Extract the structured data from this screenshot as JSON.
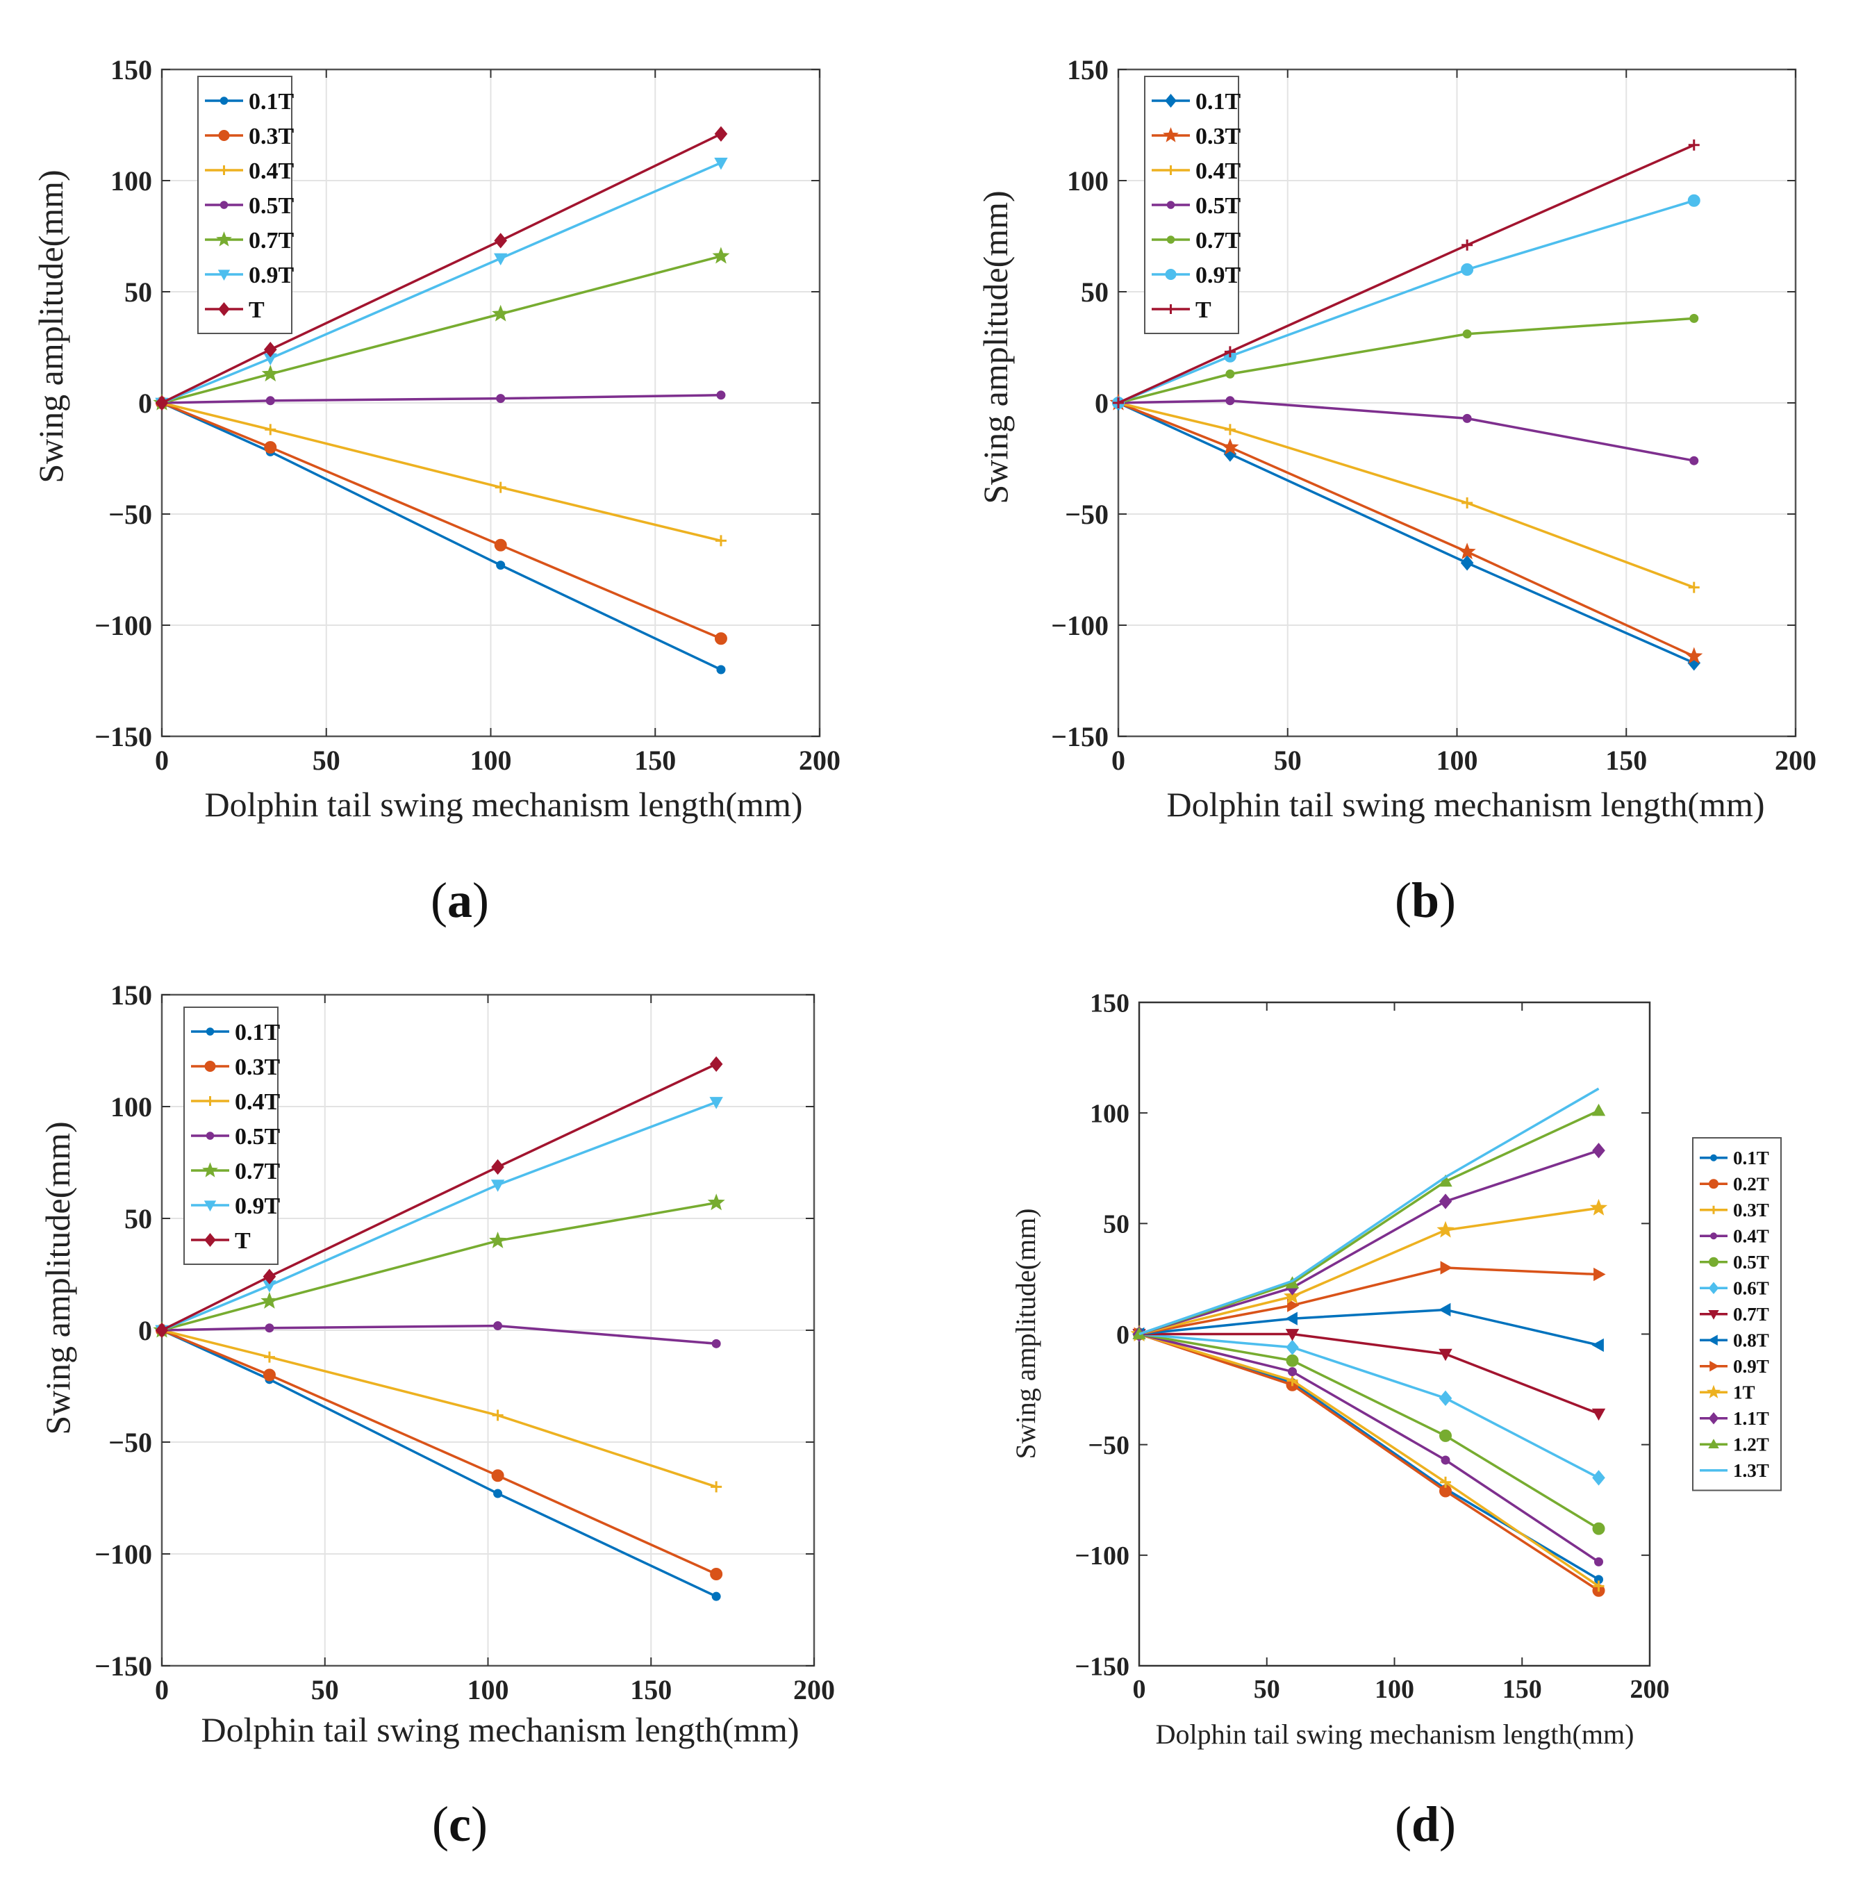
{
  "figure": {
    "panels": [
      {
        "prefix": "(",
        "letter": "a",
        "suffix": ")"
      },
      {
        "prefix": "(",
        "letter": "b",
        "suffix": ")"
      },
      {
        "prefix": "(",
        "letter": "c",
        "suffix": ")"
      },
      {
        "prefix": "(",
        "letter": "d",
        "suffix": ")"
      }
    ]
  },
  "chart_data": [
    {
      "type": "line",
      "panel": "a",
      "xlabel": "Dolphin tail swing mechanism length(mm)",
      "ylabel": "Swing amplitude(mm)",
      "xlim": [
        0,
        200
      ],
      "ylim": [
        -150,
        150
      ],
      "xticks": [
        0,
        50,
        100,
        150,
        200
      ],
      "yticks": [
        150,
        100,
        50,
        0,
        -50,
        -100,
        -150
      ],
      "ytick_labels": [
        "150",
        "100",
        "50",
        "0",
        "−50",
        "−100",
        "−150"
      ],
      "grid": true,
      "legend_position": "top-left",
      "x": [
        0,
        33,
        103,
        170
      ],
      "series": [
        {
          "name": "0.1T",
          "color": "#0072BD",
          "marker": "dot",
          "values": [
            0,
            -22,
            -73,
            -120
          ]
        },
        {
          "name": "0.3T",
          "color": "#D95319",
          "marker": "circle",
          "values": [
            0,
            -20,
            -64,
            -106
          ]
        },
        {
          "name": "0.4T",
          "color": "#EDB120",
          "marker": "plus",
          "values": [
            0,
            -12,
            -38,
            -62
          ]
        },
        {
          "name": "0.5T",
          "color": "#7E2F8E",
          "marker": "dot",
          "values": [
            0,
            1,
            2,
            3.5
          ]
        },
        {
          "name": "0.7T",
          "color": "#77AC30",
          "marker": "star",
          "values": [
            0,
            13,
            40,
            66
          ]
        },
        {
          "name": "0.9T",
          "color": "#4DBEEE",
          "marker": "triangle-down",
          "values": [
            0,
            20,
            65,
            108
          ]
        },
        {
          "name": "T",
          "color": "#A2142F",
          "marker": "diamond",
          "values": [
            0,
            24,
            73,
            121
          ]
        }
      ]
    },
    {
      "type": "line",
      "panel": "b",
      "xlabel": "Dolphin tail swing mechanism length(mm)",
      "ylabel": "Swing amplitude(mm)",
      "xlim": [
        0,
        200
      ],
      "ylim": [
        -150,
        150
      ],
      "xticks": [
        0,
        50,
        100,
        150,
        200
      ],
      "yticks": [
        150,
        100,
        50,
        0,
        -50,
        -100,
        -150
      ],
      "ytick_labels": [
        "150",
        "100",
        "50",
        "0",
        "−50",
        "−100",
        "−150"
      ],
      "grid": true,
      "legend_position": "top-left",
      "x": [
        0,
        33,
        103,
        170
      ],
      "series": [
        {
          "name": "0.1T",
          "color": "#0072BD",
          "marker": "diamond",
          "values": [
            0,
            -23,
            -72,
            -117
          ]
        },
        {
          "name": "0.3T",
          "color": "#D95319",
          "marker": "star",
          "values": [
            0,
            -20,
            -67,
            -114
          ]
        },
        {
          "name": "0.4T",
          "color": "#EDB120",
          "marker": "plus",
          "values": [
            0,
            -12,
            -45,
            -83
          ]
        },
        {
          "name": "0.5T",
          "color": "#7E2F8E",
          "marker": "dot",
          "values": [
            0,
            1,
            -7,
            -26
          ]
        },
        {
          "name": "0.7T",
          "color": "#77AC30",
          "marker": "dot",
          "values": [
            0,
            13,
            31,
            38
          ]
        },
        {
          "name": "0.9T",
          "color": "#4DBEEE",
          "marker": "circle",
          "values": [
            0,
            21,
            60,
            91
          ]
        },
        {
          "name": "T",
          "color": "#A2142F",
          "marker": "plus",
          "values": [
            0,
            23,
            71,
            116
          ]
        }
      ]
    },
    {
      "type": "line",
      "panel": "c",
      "xlabel": "Dolphin tail swing mechanism length(mm)",
      "ylabel": "Swing amplitude(mm)",
      "xlim": [
        0,
        200
      ],
      "ylim": [
        -150,
        150
      ],
      "xticks": [
        0,
        50,
        100,
        150,
        200
      ],
      "yticks": [
        150,
        100,
        50,
        0,
        -50,
        -100,
        -150
      ],
      "ytick_labels": [
        "150",
        "100",
        "50",
        "0",
        "−50",
        "−100",
        "−150"
      ],
      "grid": true,
      "legend_position": "top-left",
      "x": [
        0,
        33,
        103,
        170
      ],
      "series": [
        {
          "name": "0.1T",
          "color": "#0072BD",
          "marker": "dot",
          "values": [
            0,
            -22,
            -73,
            -119
          ]
        },
        {
          "name": "0.3T",
          "color": "#D95319",
          "marker": "circle",
          "values": [
            0,
            -20,
            -65,
            -109
          ]
        },
        {
          "name": "0.4T",
          "color": "#EDB120",
          "marker": "plus",
          "values": [
            0,
            -12,
            -38,
            -70
          ]
        },
        {
          "name": "0.5T",
          "color": "#7E2F8E",
          "marker": "dot",
          "values": [
            0,
            1,
            2,
            -6
          ]
        },
        {
          "name": "0.7T",
          "color": "#77AC30",
          "marker": "star",
          "values": [
            0,
            13,
            40,
            57
          ]
        },
        {
          "name": "0.9T",
          "color": "#4DBEEE",
          "marker": "triangle-down",
          "values": [
            0,
            20,
            65,
            102
          ]
        },
        {
          "name": "T",
          "color": "#A2142F",
          "marker": "diamond",
          "values": [
            0,
            24,
            73,
            119
          ]
        }
      ]
    },
    {
      "type": "line",
      "panel": "d",
      "xlabel": "Dolphin tail swing mechanism length(mm)",
      "ylabel": "Swing amplitude(mm)",
      "xlim": [
        0,
        200
      ],
      "ylim": [
        -150,
        150
      ],
      "xticks": [
        0,
        50,
        100,
        150,
        200
      ],
      "yticks": [
        150,
        100,
        50,
        0,
        -50,
        -100,
        -150
      ],
      "ytick_labels": [
        "150",
        "100",
        "50",
        "0",
        "−50",
        "−100",
        "−150"
      ],
      "grid": false,
      "legend_position": "outside-right",
      "x": [
        0,
        60,
        120,
        180
      ],
      "series": [
        {
          "name": "0.1T",
          "color": "#0072BD",
          "marker": "dot",
          "values": [
            0,
            -22,
            -70,
            -111
          ]
        },
        {
          "name": "0.2T",
          "color": "#D95319",
          "marker": "circle",
          "values": [
            0,
            -23,
            -71,
            -116
          ]
        },
        {
          "name": "0.3T",
          "color": "#EDB120",
          "marker": "plus",
          "values": [
            0,
            -21,
            -67,
            -114
          ]
        },
        {
          "name": "0.4T",
          "color": "#7E2F8E",
          "marker": "dot",
          "values": [
            0,
            -17,
            -57,
            -103
          ]
        },
        {
          "name": "0.5T",
          "color": "#77AC30",
          "marker": "circle",
          "values": [
            0,
            -12,
            -46,
            -88
          ]
        },
        {
          "name": "0.6T",
          "color": "#4DBEEE",
          "marker": "diamond",
          "values": [
            0,
            -6,
            -29,
            -65
          ]
        },
        {
          "name": "0.7T",
          "color": "#A2142F",
          "marker": "triangle-down",
          "values": [
            0,
            0,
            -9,
            -36
          ]
        },
        {
          "name": "0.8T",
          "color": "#0072BD",
          "marker": "triangle-left",
          "values": [
            0,
            7,
            11,
            -5
          ]
        },
        {
          "name": "0.9T",
          "color": "#D95319",
          "marker": "triangle-right",
          "values": [
            0,
            13,
            30,
            27
          ]
        },
        {
          "name": "1T",
          "color": "#EDB120",
          "marker": "star",
          "values": [
            0,
            17,
            47,
            57
          ]
        },
        {
          "name": "1.1T",
          "color": "#7E2F8E",
          "marker": "diamond",
          "values": [
            0,
            21,
            60,
            83
          ]
        },
        {
          "name": "1.2T",
          "color": "#77AC30",
          "marker": "triangle-up",
          "values": [
            0,
            23,
            69,
            101
          ]
        },
        {
          "name": "1.3T",
          "color": "#4DBEEE",
          "marker": "none",
          "values": [
            0,
            24,
            71,
            111
          ]
        }
      ]
    }
  ]
}
